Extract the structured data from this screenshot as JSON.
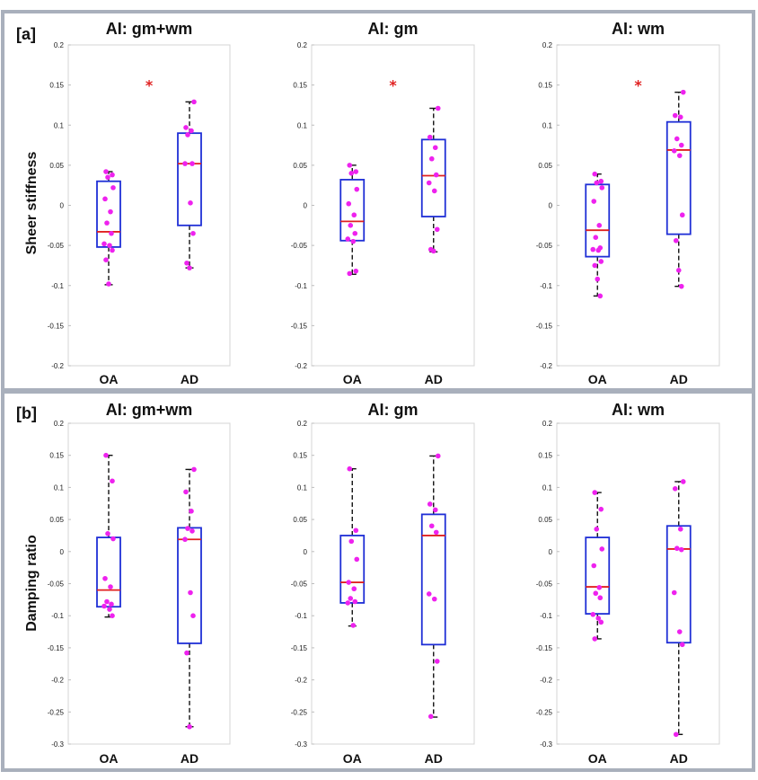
{
  "panels": [
    {
      "label": "[a]",
      "ylabel": "Sheer stiffness",
      "ylim": [
        -0.2,
        0.2
      ],
      "yticks": [
        0.2,
        0.15,
        0.1,
        0.05,
        0,
        -0.05,
        -0.1,
        -0.15,
        -0.2
      ],
      "ytick_labels": [
        "0.2",
        "0.15",
        "0.1",
        "0.05",
        "0",
        "-0.05",
        "-0.1",
        "-0.15",
        "-0.2"
      ]
    },
    {
      "label": "[b]",
      "ylabel": "Damping ratio",
      "ylim": [
        -0.3,
        0.2
      ],
      "yticks": [
        0.2,
        0.15,
        0.1,
        0.05,
        0,
        -0.05,
        -0.1,
        -0.15,
        -0.2,
        -0.25,
        -0.3
      ],
      "ytick_labels": [
        "0.2",
        "0.15",
        "0.1",
        "0.05",
        "0",
        "-0.05",
        "-0.1",
        "-0.15",
        "-0.2",
        "-0.25",
        "-0.3"
      ]
    }
  ],
  "colors": {
    "box": "#1f2fd6",
    "median": "#e02020",
    "points": "#ee22ee",
    "whisker": "#111111",
    "sig": "#e02020"
  },
  "chart_data": [
    {
      "type": "box",
      "panel": 0,
      "title": "AI: gm+wm",
      "categories": [
        "OA",
        "AD"
      ],
      "significance": "*",
      "groups": [
        {
          "q1": -0.052,
          "median": -0.033,
          "q3": 0.03,
          "whisker_low": -0.099,
          "whisker_high": 0.042,
          "points": [
            0.042,
            0.038,
            0.035,
            0.022,
            0.008,
            -0.008,
            -0.022,
            -0.035,
            -0.048,
            -0.05,
            -0.056,
            -0.068,
            -0.098
          ]
        },
        {
          "q1": -0.025,
          "median": 0.052,
          "q3": 0.09,
          "whisker_low": -0.078,
          "whisker_high": 0.129,
          "points": [
            0.129,
            0.097,
            0.093,
            0.088,
            0.052,
            0.052,
            0.003,
            -0.035,
            -0.072,
            -0.078
          ]
        }
      ]
    },
    {
      "type": "box",
      "panel": 0,
      "title": "AI: gm",
      "categories": [
        "OA",
        "AD"
      ],
      "significance": "*",
      "groups": [
        {
          "q1": -0.044,
          "median": -0.02,
          "q3": 0.032,
          "whisker_low": -0.086,
          "whisker_high": 0.05,
          "points": [
            0.05,
            0.042,
            0.04,
            0.02,
            0.002,
            -0.012,
            -0.025,
            -0.035,
            -0.042,
            -0.045,
            -0.082,
            -0.085
          ]
        },
        {
          "q1": -0.014,
          "median": 0.037,
          "q3": 0.082,
          "whisker_low": -0.058,
          "whisker_high": 0.121,
          "points": [
            0.121,
            0.085,
            0.072,
            0.058,
            0.038,
            0.028,
            0.018,
            -0.03,
            -0.055,
            -0.057
          ]
        }
      ]
    },
    {
      "type": "box",
      "panel": 0,
      "title": "AI: wm",
      "categories": [
        "OA",
        "AD"
      ],
      "significance": "*",
      "groups": [
        {
          "q1": -0.064,
          "median": -0.031,
          "q3": 0.026,
          "whisker_low": -0.113,
          "whisker_high": 0.039,
          "points": [
            0.039,
            0.03,
            0.028,
            0.022,
            0.005,
            -0.025,
            -0.04,
            -0.053,
            -0.055,
            -0.056,
            -0.07,
            -0.075,
            -0.092,
            -0.113
          ]
        },
        {
          "q1": -0.036,
          "median": 0.069,
          "q3": 0.104,
          "whisker_low": -0.101,
          "whisker_high": 0.141,
          "points": [
            0.141,
            0.112,
            0.11,
            0.083,
            0.075,
            0.068,
            0.062,
            -0.012,
            -0.044,
            -0.081,
            -0.101
          ]
        }
      ]
    },
    {
      "type": "box",
      "panel": 1,
      "title": "AI: gm+wm",
      "categories": [
        "OA",
        "AD"
      ],
      "significance": "",
      "groups": [
        {
          "q1": -0.086,
          "median": -0.06,
          "q3": 0.022,
          "whisker_low": -0.102,
          "whisker_high": 0.15,
          "points": [
            0.15,
            0.11,
            0.028,
            0.02,
            -0.042,
            -0.055,
            -0.078,
            -0.082,
            -0.085,
            -0.09,
            -0.1
          ]
        },
        {
          "q1": -0.143,
          "median": 0.019,
          "q3": 0.037,
          "whisker_low": -0.273,
          "whisker_high": 0.128,
          "points": [
            0.128,
            0.093,
            0.063,
            0.036,
            0.032,
            0.019,
            -0.064,
            -0.1,
            -0.158,
            -0.273
          ]
        }
      ]
    },
    {
      "type": "box",
      "panel": 1,
      "title": "AI: gm",
      "categories": [
        "OA",
        "AD"
      ],
      "significance": "",
      "groups": [
        {
          "q1": -0.08,
          "median": -0.048,
          "q3": 0.025,
          "whisker_low": -0.116,
          "whisker_high": 0.129,
          "points": [
            0.129,
            0.033,
            0.016,
            -0.012,
            -0.048,
            -0.058,
            -0.073,
            -0.078,
            -0.08,
            -0.115
          ]
        },
        {
          "q1": -0.145,
          "median": 0.025,
          "q3": 0.058,
          "whisker_low": -0.258,
          "whisker_high": 0.149,
          "points": [
            0.149,
            0.074,
            0.065,
            0.04,
            0.03,
            -0.066,
            -0.074,
            -0.171,
            -0.257
          ]
        }
      ]
    },
    {
      "type": "box",
      "panel": 1,
      "title": "AI: wm",
      "categories": [
        "OA",
        "AD"
      ],
      "significance": "",
      "groups": [
        {
          "q1": -0.097,
          "median": -0.055,
          "q3": 0.022,
          "whisker_low": -0.136,
          "whisker_high": 0.092,
          "points": [
            0.092,
            0.066,
            0.035,
            0.004,
            -0.022,
            -0.056,
            -0.065,
            -0.072,
            -0.098,
            -0.104,
            -0.11,
            -0.136
          ]
        },
        {
          "q1": -0.142,
          "median": 0.004,
          "q3": 0.04,
          "whisker_low": -0.285,
          "whisker_high": 0.109,
          "points": [
            0.109,
            0.098,
            0.035,
            0.005,
            0.003,
            -0.064,
            -0.125,
            -0.145,
            -0.285
          ]
        }
      ]
    }
  ]
}
